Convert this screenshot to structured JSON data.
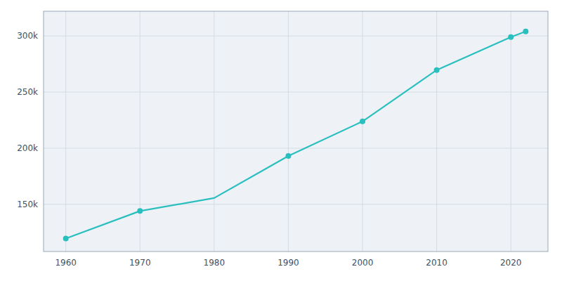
{
  "chart_data": {
    "type": "line",
    "x": [
      1960,
      1970,
      1980,
      1990,
      2000,
      2010,
      2020,
      2022
    ],
    "series": [
      {
        "color": "#2abfbf",
        "values": [
          119574,
          144076,
          155642,
          193053,
          223891,
          269666,
          299035,
          304014
        ]
      },
      {
        "type": "scatter",
        "marker": "circle",
        "color": "#2abfbf",
        "values": [
          119574,
          144076,
          null,
          193053,
          223891,
          269666,
          299035,
          304014
        ]
      }
    ],
    "xlim": [
      1957,
      2025
    ],
    "ylim": [
      108000,
      322000
    ],
    "xticks": [
      1960,
      1970,
      1980,
      1990,
      2000,
      2010,
      2020
    ],
    "yticks": [
      {
        "value": 150000,
        "label": "150k"
      },
      {
        "value": 200000,
        "label": "200k"
      },
      {
        "value": 250000,
        "label": "250k"
      },
      {
        "value": 300000,
        "label": "300k"
      }
    ],
    "grid": true
  }
}
